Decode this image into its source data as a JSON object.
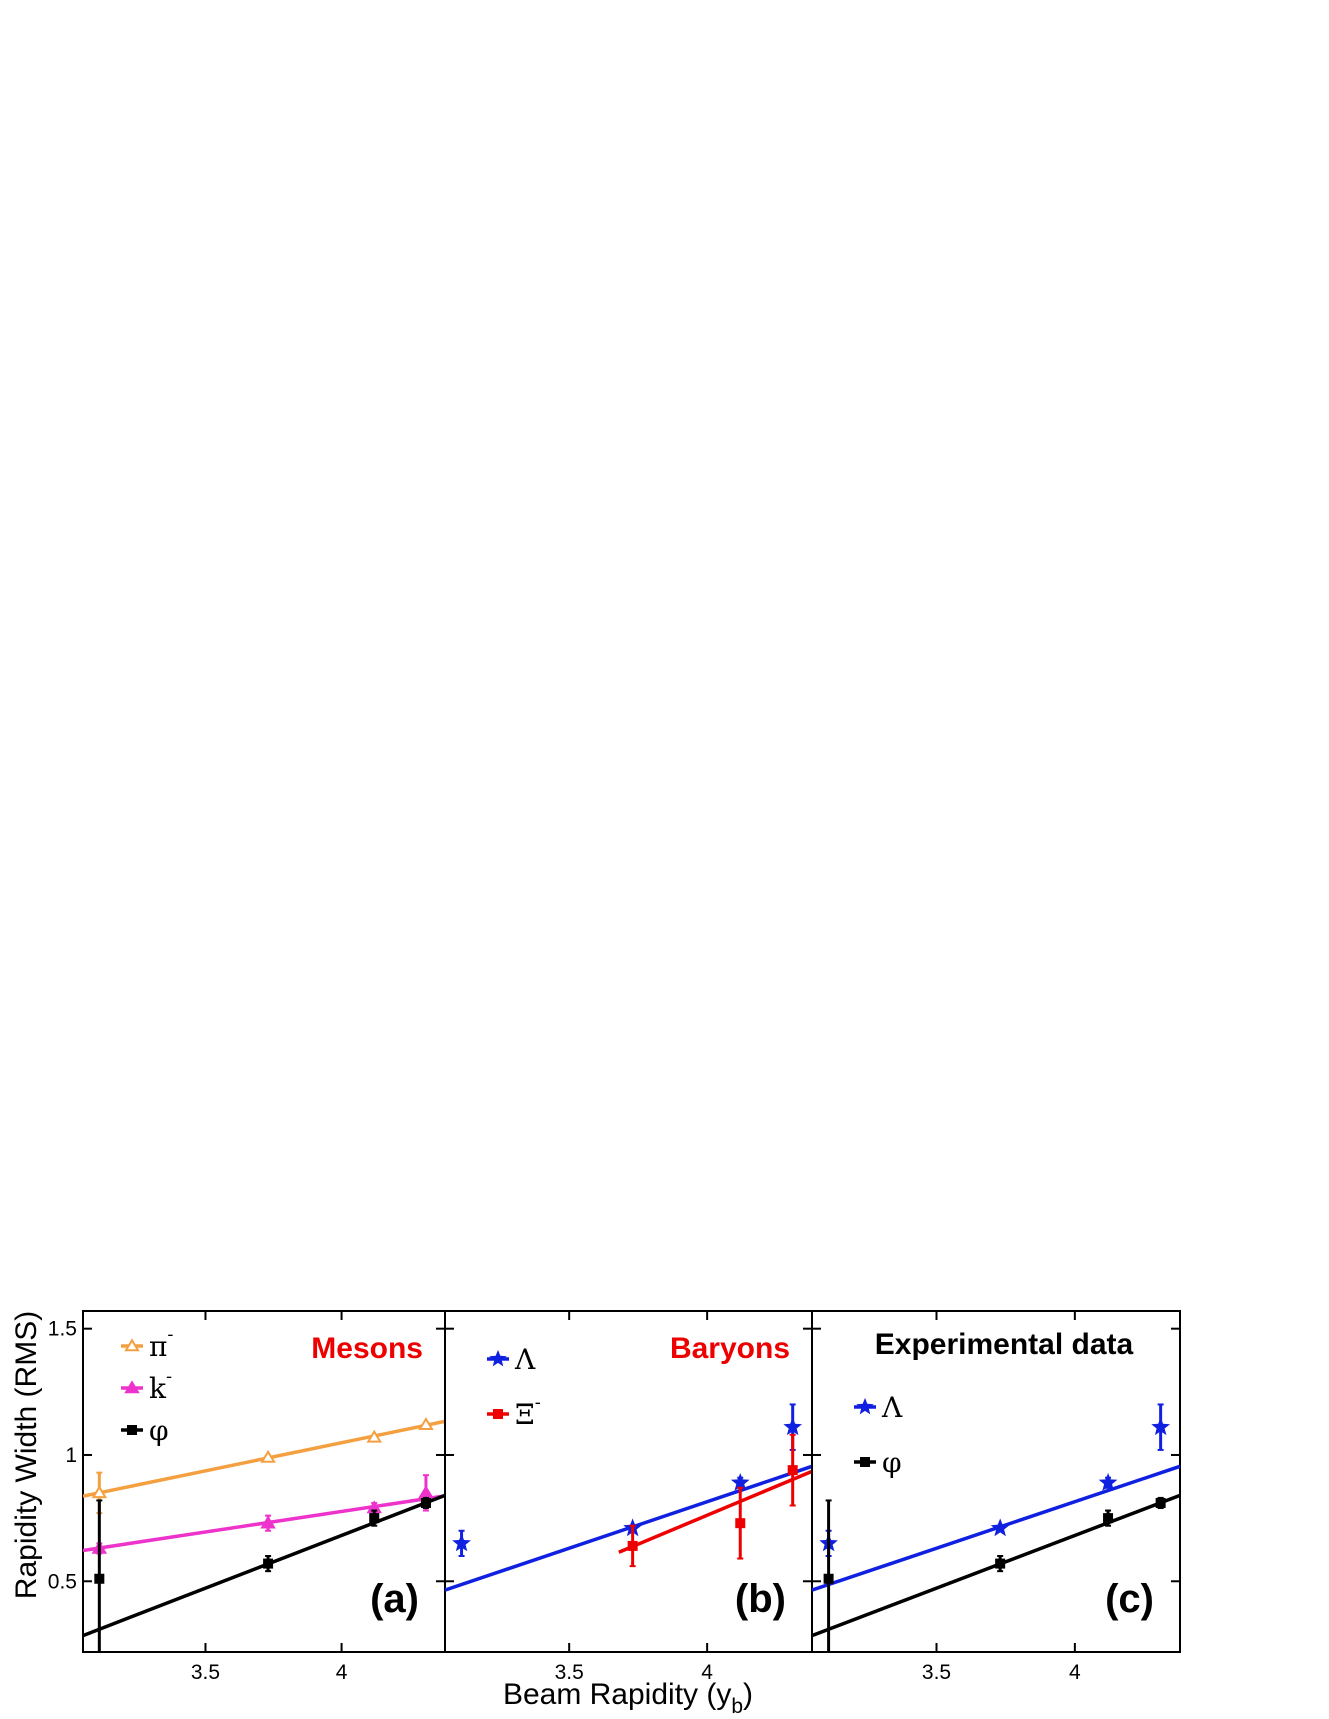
{
  "chart_data": {
    "type": "scatter",
    "xlabel": "Beam Rapidity (y",
    "xlabel_sub": "b",
    "xlabel_close": ")",
    "ylabel": "Rapidity Width (RMS)",
    "x_ticks": [
      "3.5",
      "4"
    ],
    "y_ticks": [
      "0.5",
      "1",
      "1.5"
    ],
    "xlim": [
      3.05,
      4.38
    ],
    "ylim": [
      0.22,
      1.57
    ],
    "panels": [
      {
        "letter": "(a)",
        "title": "Mesons",
        "title_color": "#ee0000",
        "series": [
          {
            "name": "π",
            "sup": "-",
            "marker": "triangle-open",
            "color": "#f5a040",
            "x": [
              3.11,
              3.73,
              4.12,
              4.31
            ],
            "y": [
              0.85,
              0.99,
              1.07,
              1.12
            ],
            "err": [
              0.08,
              0.0,
              0.0,
              0.0
            ],
            "fit": [
              [
                3.05,
                0.837
              ],
              [
                4.38,
                1.133
              ]
            ]
          },
          {
            "name": "k",
            "sup": "-",
            "marker": "triangle-filled",
            "color": "#ee33cc",
            "x": [
              3.11,
              3.73,
              4.12,
              4.31
            ],
            "y": [
              0.63,
              0.73,
              0.79,
              0.85
            ],
            "err": [
              0.02,
              0.03,
              0.02,
              0.07
            ],
            "fit": [
              [
                3.05,
                0.622
              ],
              [
                4.38,
                0.838
              ]
            ]
          },
          {
            "name": "φ",
            "sup": "",
            "marker": "square",
            "color": "#000000",
            "x": [
              3.11,
              3.73,
              4.12,
              4.31
            ],
            "y": [
              0.51,
              0.57,
              0.75,
              0.81
            ],
            "err": [
              0.31,
              0.03,
              0.03,
              0.02
            ],
            "fit": [
              [
                3.05,
                0.285
              ],
              [
                4.38,
                0.84
              ]
            ]
          }
        ]
      },
      {
        "letter": "(b)",
        "title": "Baryons",
        "title_color": "#ee0000",
        "series": [
          {
            "name": "Λ",
            "sup": "",
            "marker": "star",
            "color": "#1020e0",
            "x": [
              3.11,
              3.73,
              4.12,
              4.31
            ],
            "y": [
              0.65,
              0.71,
              0.89,
              1.11
            ],
            "err": [
              0.05,
              0.01,
              0.02,
              0.09
            ],
            "fit": [
              [
                3.05,
                0.465
              ],
              [
                4.38,
                0.955
              ]
            ]
          },
          {
            "name": "Ξ",
            "sup": "-",
            "marker": "square",
            "color": "#ee0000",
            "x": [
              3.73,
              4.12,
              4.31
            ],
            "y": [
              0.64,
              0.73,
              0.94
            ],
            "err": [
              0.08,
              0.14,
              0.14
            ],
            "fit": [
              [
                3.68,
                0.615
              ],
              [
                4.38,
                0.935
              ]
            ]
          }
        ]
      },
      {
        "letter": "(c)",
        "title": "Experimental data",
        "title_color": "#000000",
        "series": [
          {
            "name": "Λ",
            "sup": "",
            "marker": "star",
            "color": "#1020e0",
            "x": [
              3.11,
              3.73,
              4.12,
              4.31
            ],
            "y": [
              0.65,
              0.71,
              0.89,
              1.11
            ],
            "err": [
              0.05,
              0.01,
              0.02,
              0.09
            ],
            "fit": [
              [
                3.05,
                0.465
              ],
              [
                4.38,
                0.955
              ]
            ]
          },
          {
            "name": "φ",
            "sup": "",
            "marker": "square",
            "color": "#000000",
            "x": [
              3.11,
              3.73,
              4.12,
              4.31
            ],
            "y": [
              0.51,
              0.57,
              0.75,
              0.81
            ],
            "err": [
              0.31,
              0.03,
              0.03,
              0.02
            ],
            "fit": [
              [
                3.05,
                0.285
              ],
              [
                4.38,
                0.84
              ]
            ]
          }
        ]
      }
    ]
  }
}
